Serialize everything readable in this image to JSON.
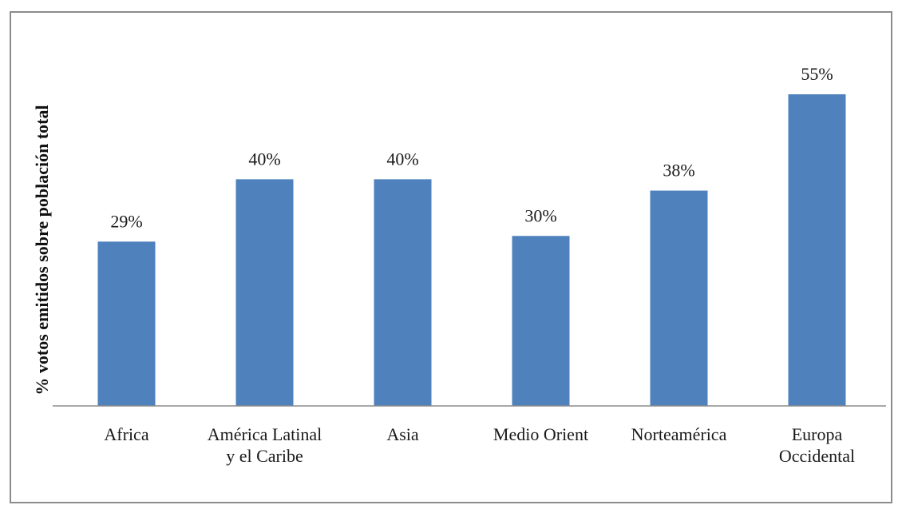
{
  "chart_data": {
    "type": "bar",
    "categories": [
      [
        "Africa"
      ],
      [
        "América Latinal",
        "y el Caribe"
      ],
      [
        "Asia"
      ],
      [
        "Medio Orient"
      ],
      [
        "Norteamérica"
      ],
      [
        "Europa",
        "Occidental"
      ]
    ],
    "values": [
      29,
      40,
      40,
      30,
      38,
      55
    ],
    "data_labels": [
      "29%",
      "40%",
      "40%",
      "30%",
      "38%",
      "55%"
    ],
    "ylabel": "% votos emitidos sobre población total",
    "ylim": [
      0,
      55
    ],
    "grid": false,
    "colors": {
      "bar": "#4f81bd",
      "axis": "#8c8c8c"
    }
  }
}
